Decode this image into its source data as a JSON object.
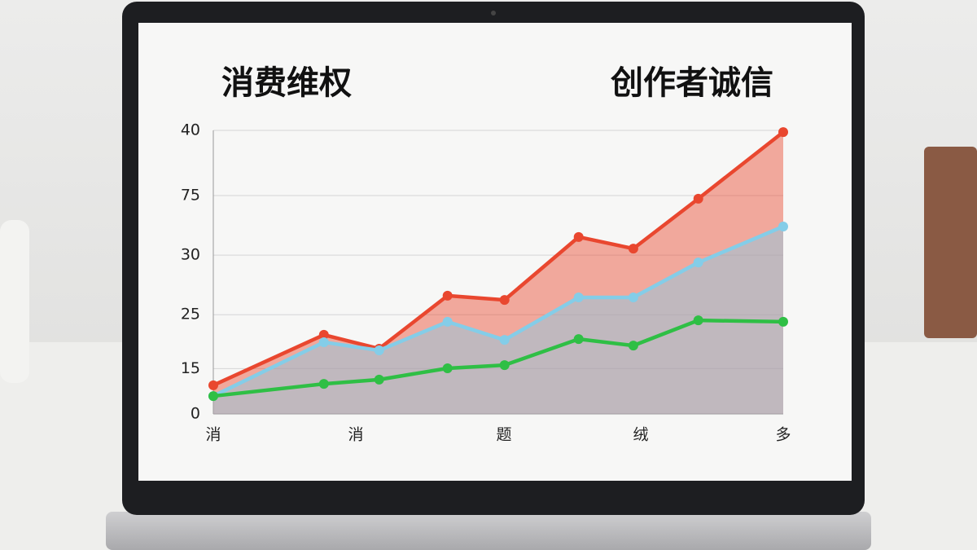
{
  "chart_data": {
    "type": "area",
    "title": "消费维权",
    "subtitle": "创作者诚信",
    "x": [
      0,
      19.4,
      29.1,
      41.1,
      51.1,
      64.1,
      73.7,
      85.1,
      100
    ],
    "xlim": [
      0,
      100
    ],
    "xticks": [
      {
        "value": 0,
        "label": "消"
      },
      {
        "value": 25,
        "label": "消"
      },
      {
        "value": 51,
        "label": "题"
      },
      {
        "value": 75,
        "label": "绒"
      },
      {
        "value": 100,
        "label": "多"
      }
    ],
    "ylim": [
      0,
      100
    ],
    "yticks": [
      {
        "value": 100,
        "label": "40"
      },
      {
        "value": 77,
        "label": "75"
      },
      {
        "value": 56,
        "label": "30"
      },
      {
        "value": 35,
        "label": "25"
      },
      {
        "value": 16,
        "label": "15"
      },
      0
    ],
    "grid": true,
    "series": [
      {
        "color": "#e9472f",
        "fill": true,
        "values": [
          10.1,
          27.9,
          23.0,
          41.7,
          40.2,
          62.4,
          58.3,
          75.9,
          99.4
        ]
      },
      {
        "color": "#84cde8",
        "fill": true,
        "values": [
          6.3,
          25.3,
          22.4,
          32.5,
          26.1,
          41.1,
          41.1,
          53.4,
          66.1
        ]
      },
      {
        "color": "#2fbf45",
        "fill": false,
        "values": [
          6.3,
          10.6,
          12.1,
          16.1,
          17.2,
          26.4,
          24.1,
          33.0,
          32.5
        ]
      }
    ]
  }
}
